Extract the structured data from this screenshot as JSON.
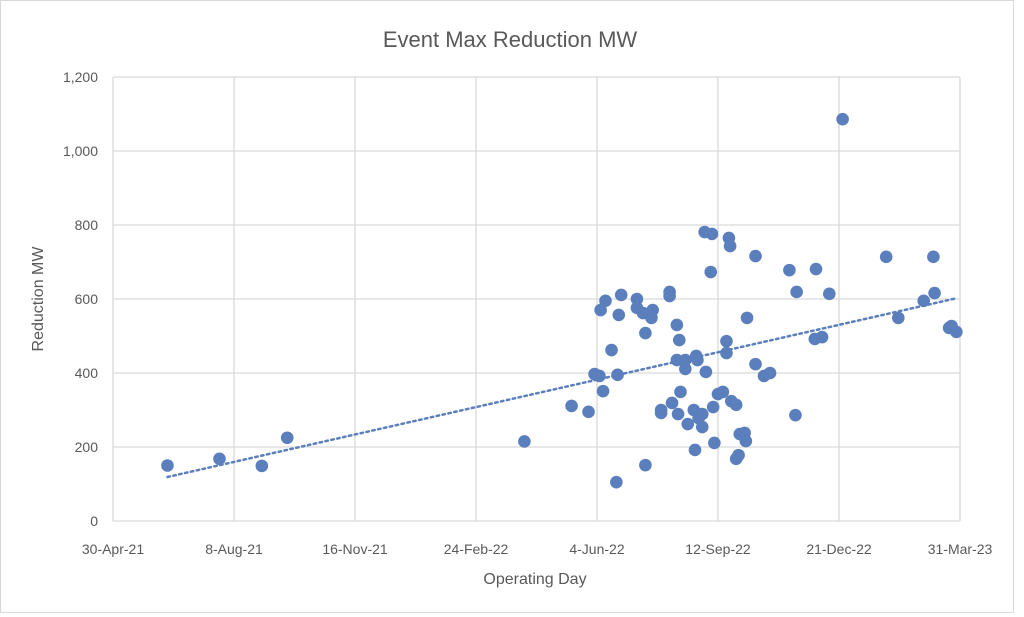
{
  "chart_data": {
    "type": "scatter",
    "title": "Event Max Reduction MW",
    "xlabel": "Operating Day",
    "ylabel": "Reduction MW",
    "xlim": [
      "2021-04-30",
      "2023-03-31"
    ],
    "ylim": [
      0,
      1200
    ],
    "x_ticks": [
      "30-Apr-21",
      "8-Aug-21",
      "16-Nov-21",
      "24-Feb-22",
      "4-Jun-22",
      "12-Sep-22",
      "21-Dec-22",
      "31-Mar-23"
    ],
    "y_ticks": [
      "0",
      "200",
      "400",
      "600",
      "800",
      "1,000",
      "1,200"
    ],
    "grid": true,
    "trendline": "linear (dotted)",
    "colors": {
      "points": "#5B7FBD",
      "grid": "#D9D9D9",
      "text": "#595959"
    },
    "points": [
      [
        "2021-06-14",
        150
      ],
      [
        "2021-07-27",
        168
      ],
      [
        "2021-08-31",
        149
      ],
      [
        "2021-09-21",
        225
      ],
      [
        "2022-04-05",
        215
      ],
      [
        "2022-05-14",
        311
      ],
      [
        "2022-05-28",
        295
      ],
      [
        "2022-06-02",
        397
      ],
      [
        "2022-06-06",
        392
      ],
      [
        "2022-06-07",
        570
      ],
      [
        "2022-06-11",
        595
      ],
      [
        "2022-06-09",
        351
      ],
      [
        "2022-06-16",
        462
      ],
      [
        "2022-06-20",
        105
      ],
      [
        "2022-06-21",
        395
      ],
      [
        "2022-06-22",
        557
      ],
      [
        "2022-06-24",
        611
      ],
      [
        "2022-07-07",
        600
      ],
      [
        "2022-07-07",
        576
      ],
      [
        "2022-07-12",
        562
      ],
      [
        "2022-07-14",
        508
      ],
      [
        "2022-07-14",
        151
      ],
      [
        "2022-07-19",
        549
      ],
      [
        "2022-07-20",
        570
      ],
      [
        "2022-07-27",
        300
      ],
      [
        "2022-07-27",
        292
      ],
      [
        "2022-08-03",
        619
      ],
      [
        "2022-08-03",
        608
      ],
      [
        "2022-08-05",
        319
      ],
      [
        "2022-08-09",
        530
      ],
      [
        "2022-08-09",
        435
      ],
      [
        "2022-08-10",
        289
      ],
      [
        "2022-08-11",
        489
      ],
      [
        "2022-08-12",
        349
      ],
      [
        "2022-08-16",
        411
      ],
      [
        "2022-08-16",
        435
      ],
      [
        "2022-08-18",
        262
      ],
      [
        "2022-08-23",
        300
      ],
      [
        "2022-08-24",
        192
      ],
      [
        "2022-08-25",
        446
      ],
      [
        "2022-08-26",
        435
      ],
      [
        "2022-08-27",
        278
      ],
      [
        "2022-08-30",
        254
      ],
      [
        "2022-08-30",
        289
      ],
      [
        "2022-09-02",
        403
      ],
      [
        "2022-09-01",
        781
      ],
      [
        "2022-09-07",
        776
      ],
      [
        "2022-09-06",
        673
      ],
      [
        "2022-09-08",
        308
      ],
      [
        "2022-09-09",
        211
      ],
      [
        "2022-09-12",
        343
      ],
      [
        "2022-09-16",
        349
      ],
      [
        "2022-09-19",
        454
      ],
      [
        "2022-09-19",
        486
      ],
      [
        "2022-09-21",
        765
      ],
      [
        "2022-09-22",
        743
      ],
      [
        "2022-09-23",
        324
      ],
      [
        "2022-09-27",
        314
      ],
      [
        "2022-09-27",
        168
      ],
      [
        "2022-09-29",
        178
      ],
      [
        "2022-09-30",
        235
      ],
      [
        "2022-10-04",
        238
      ],
      [
        "2022-10-05",
        216
      ],
      [
        "2022-10-06",
        549
      ],
      [
        "2022-10-13",
        716
      ],
      [
        "2022-10-13",
        424
      ],
      [
        "2022-10-20",
        392
      ],
      [
        "2022-10-25",
        400
      ],
      [
        "2022-11-10",
        678
      ],
      [
        "2022-11-15",
        286
      ],
      [
        "2022-11-16",
        619
      ],
      [
        "2022-12-01",
        492
      ],
      [
        "2022-12-02",
        681
      ],
      [
        "2022-12-07",
        497
      ],
      [
        "2022-12-13",
        614
      ],
      [
        "2022-12-24",
        1086
      ],
      [
        "2023-01-29",
        714
      ],
      [
        "2023-02-08",
        549
      ],
      [
        "2023-03-01",
        595
      ],
      [
        "2023-03-09",
        714
      ],
      [
        "2023-03-10",
        616
      ],
      [
        "2023-03-22",
        522
      ],
      [
        "2023-03-24",
        527
      ],
      [
        "2023-03-28",
        511
      ]
    ]
  }
}
